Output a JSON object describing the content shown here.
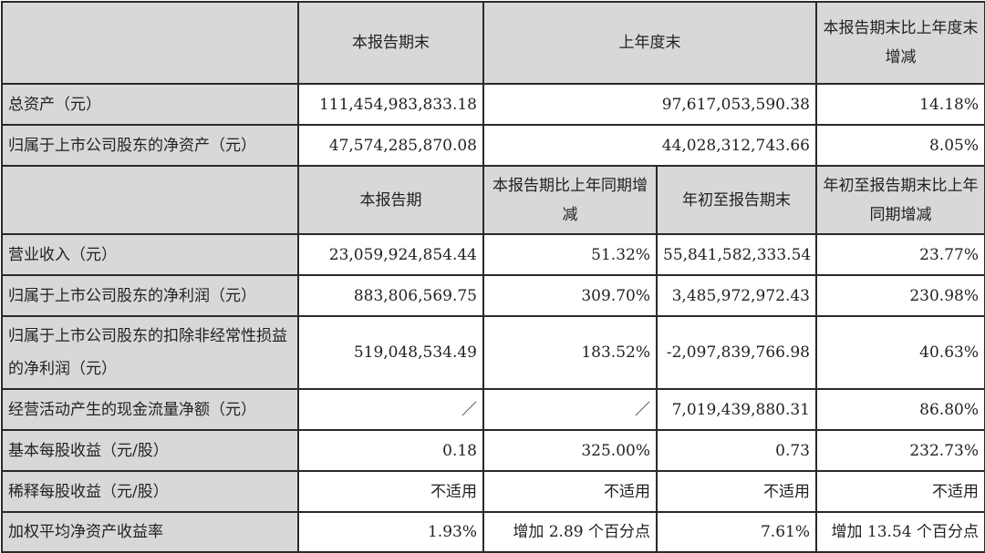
{
  "section1": {
    "headers": [
      "",
      "本报告期末",
      "上年度末",
      "本报告期末比上年度末增减"
    ],
    "rows": [
      {
        "label": "总资产（元）",
        "values": [
          "111,454,983,833.18",
          "97,617,053,590.38",
          "14.18%"
        ]
      },
      {
        "label": "归属于上市公司股东的净资产（元）",
        "values": [
          "47,574,285,870.08",
          "44,028,312,743.66",
          "8.05%"
        ]
      }
    ]
  },
  "section2": {
    "headers": [
      "",
      "本报告期",
      "本报告期比上年同期增减",
      "年初至报告期末",
      "年初至报告期末比上年同期增减"
    ],
    "rows": [
      {
        "label": "营业收入（元）",
        "values": [
          "23,059,924,854.44",
          "51.32%",
          "55,841,582,333.54",
          "23.77%"
        ]
      },
      {
        "label": "归属于上市公司股东的净利润（元）",
        "values": [
          "883,806,569.75",
          "309.70%",
          "3,485,972,972.43",
          "230.98%"
        ]
      },
      {
        "label": "归属于上市公司股东的扣除非经常性损益的净利润（元）",
        "values": [
          "519,048,534.49",
          "183.52%",
          "-2,097,839,766.98",
          "40.63%"
        ]
      },
      {
        "label": "经营活动产生的现金流量净额（元）",
        "values": [
          "／",
          "／",
          "7,019,439,880.31",
          "86.80%"
        ]
      },
      {
        "label": "基本每股收益（元/股）",
        "values": [
          "0.18",
          "325.00%",
          "0.73",
          "232.73%"
        ]
      },
      {
        "label": "稀释每股收益（元/股）",
        "values": [
          "不适用",
          "不适用",
          "不适用",
          "不适用"
        ]
      },
      {
        "label": "加权平均净资产收益率",
        "values": [
          "1.93%",
          "增加 2.89 个百分点",
          "7.61%",
          "增加 13.54 个百分点"
        ]
      }
    ]
  }
}
